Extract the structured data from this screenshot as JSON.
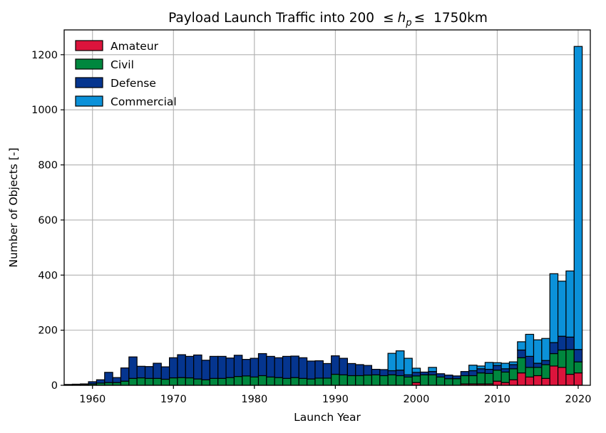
{
  "chart_data": {
    "type": "bar",
    "stacked": true,
    "title_prefix": "Payload Launch Traffic into 200",
    "title_symbol_left": "≤",
    "title_var": "h",
    "title_var_sub": "p",
    "title_symbol_right": "≤",
    "title_suffix": "1750km",
    "xlabel": "Launch Year",
    "ylabel": "Number of Objects [-]",
    "xlim": [
      1956.5,
      2021.5
    ],
    "ylim": [
      0,
      1290
    ],
    "xticks": [
      1960,
      1970,
      1980,
      1990,
      2000,
      2010,
      2020
    ],
    "yticks": [
      0,
      200,
      400,
      600,
      800,
      1000,
      1200
    ],
    "grid": true,
    "legend_position": "top-left",
    "x": [
      1957,
      1958,
      1959,
      1960,
      1961,
      1962,
      1963,
      1964,
      1965,
      1966,
      1967,
      1968,
      1969,
      1970,
      1971,
      1972,
      1973,
      1974,
      1975,
      1976,
      1977,
      1978,
      1979,
      1980,
      1981,
      1982,
      1983,
      1984,
      1985,
      1986,
      1987,
      1988,
      1989,
      1990,
      1991,
      1992,
      1993,
      1994,
      1995,
      1996,
      1997,
      1998,
      1999,
      2000,
      2001,
      2002,
      2003,
      2004,
      2005,
      2006,
      2007,
      2008,
      2009,
      2010,
      2011,
      2012,
      2013,
      2014,
      2015,
      2016,
      2017,
      2018,
      2019,
      2020
    ],
    "series": [
      {
        "name": "Amateur",
        "color": "#dc143c",
        "values": [
          0,
          0,
          0,
          0,
          0,
          0,
          0,
          0,
          0,
          0,
          0,
          0,
          0,
          0,
          0,
          0,
          0,
          0,
          0,
          0,
          0,
          0,
          0,
          0,
          0,
          0,
          0,
          0,
          0,
          0,
          0,
          0,
          0,
          0,
          0,
          0,
          0,
          0,
          0,
          0,
          0,
          0,
          0,
          10,
          0,
          0,
          0,
          0,
          0,
          5,
          5,
          5,
          5,
          15,
          10,
          20,
          45,
          30,
          35,
          25,
          70,
          65,
          40,
          45
        ]
      },
      {
        "name": "Civil",
        "color": "#00873e",
        "values": [
          0,
          2,
          3,
          5,
          8,
          10,
          10,
          15,
          25,
          27,
          25,
          25,
          22,
          27,
          28,
          27,
          23,
          20,
          25,
          25,
          28,
          32,
          34,
          30,
          35,
          30,
          28,
          25,
          28,
          25,
          23,
          26,
          26,
          40,
          38,
          35,
          35,
          37,
          38,
          35,
          38,
          35,
          30,
          24,
          38,
          38,
          30,
          24,
          24,
          30,
          30,
          40,
          38,
          40,
          38,
          40,
          55,
          35,
          30,
          50,
          45,
          63,
          90,
          40
        ]
      },
      {
        "name": "Defense",
        "color": "#05358f",
        "values": [
          3,
          2,
          2,
          8,
          12,
          37,
          18,
          48,
          78,
          42,
          43,
          55,
          45,
          73,
          83,
          78,
          87,
          71,
          80,
          80,
          71,
          77,
          60,
          68,
          80,
          75,
          72,
          80,
          78,
          75,
          65,
          63,
          53,
          67,
          60,
          44,
          40,
          35,
          20,
          22,
          15,
          20,
          8,
          13,
          10,
          12,
          12,
          13,
          10,
          15,
          18,
          15,
          15,
          17,
          12,
          15,
          28,
          40,
          15,
          15,
          40,
          50,
          45,
          45
        ]
      },
      {
        "name": "Commercial",
        "color": "#0b91d9",
        "values": [
          0,
          0,
          0,
          0,
          0,
          0,
          0,
          0,
          0,
          0,
          0,
          0,
          0,
          0,
          0,
          0,
          0,
          0,
          0,
          0,
          0,
          0,
          0,
          0,
          0,
          0,
          0,
          0,
          0,
          0,
          0,
          0,
          0,
          0,
          0,
          0,
          0,
          0,
          0,
          0,
          63,
          70,
          60,
          15,
          0,
          15,
          0,
          0,
          0,
          0,
          20,
          10,
          25,
          10,
          20,
          10,
          30,
          80,
          85,
          80,
          250,
          200,
          240,
          1100
        ]
      }
    ]
  }
}
